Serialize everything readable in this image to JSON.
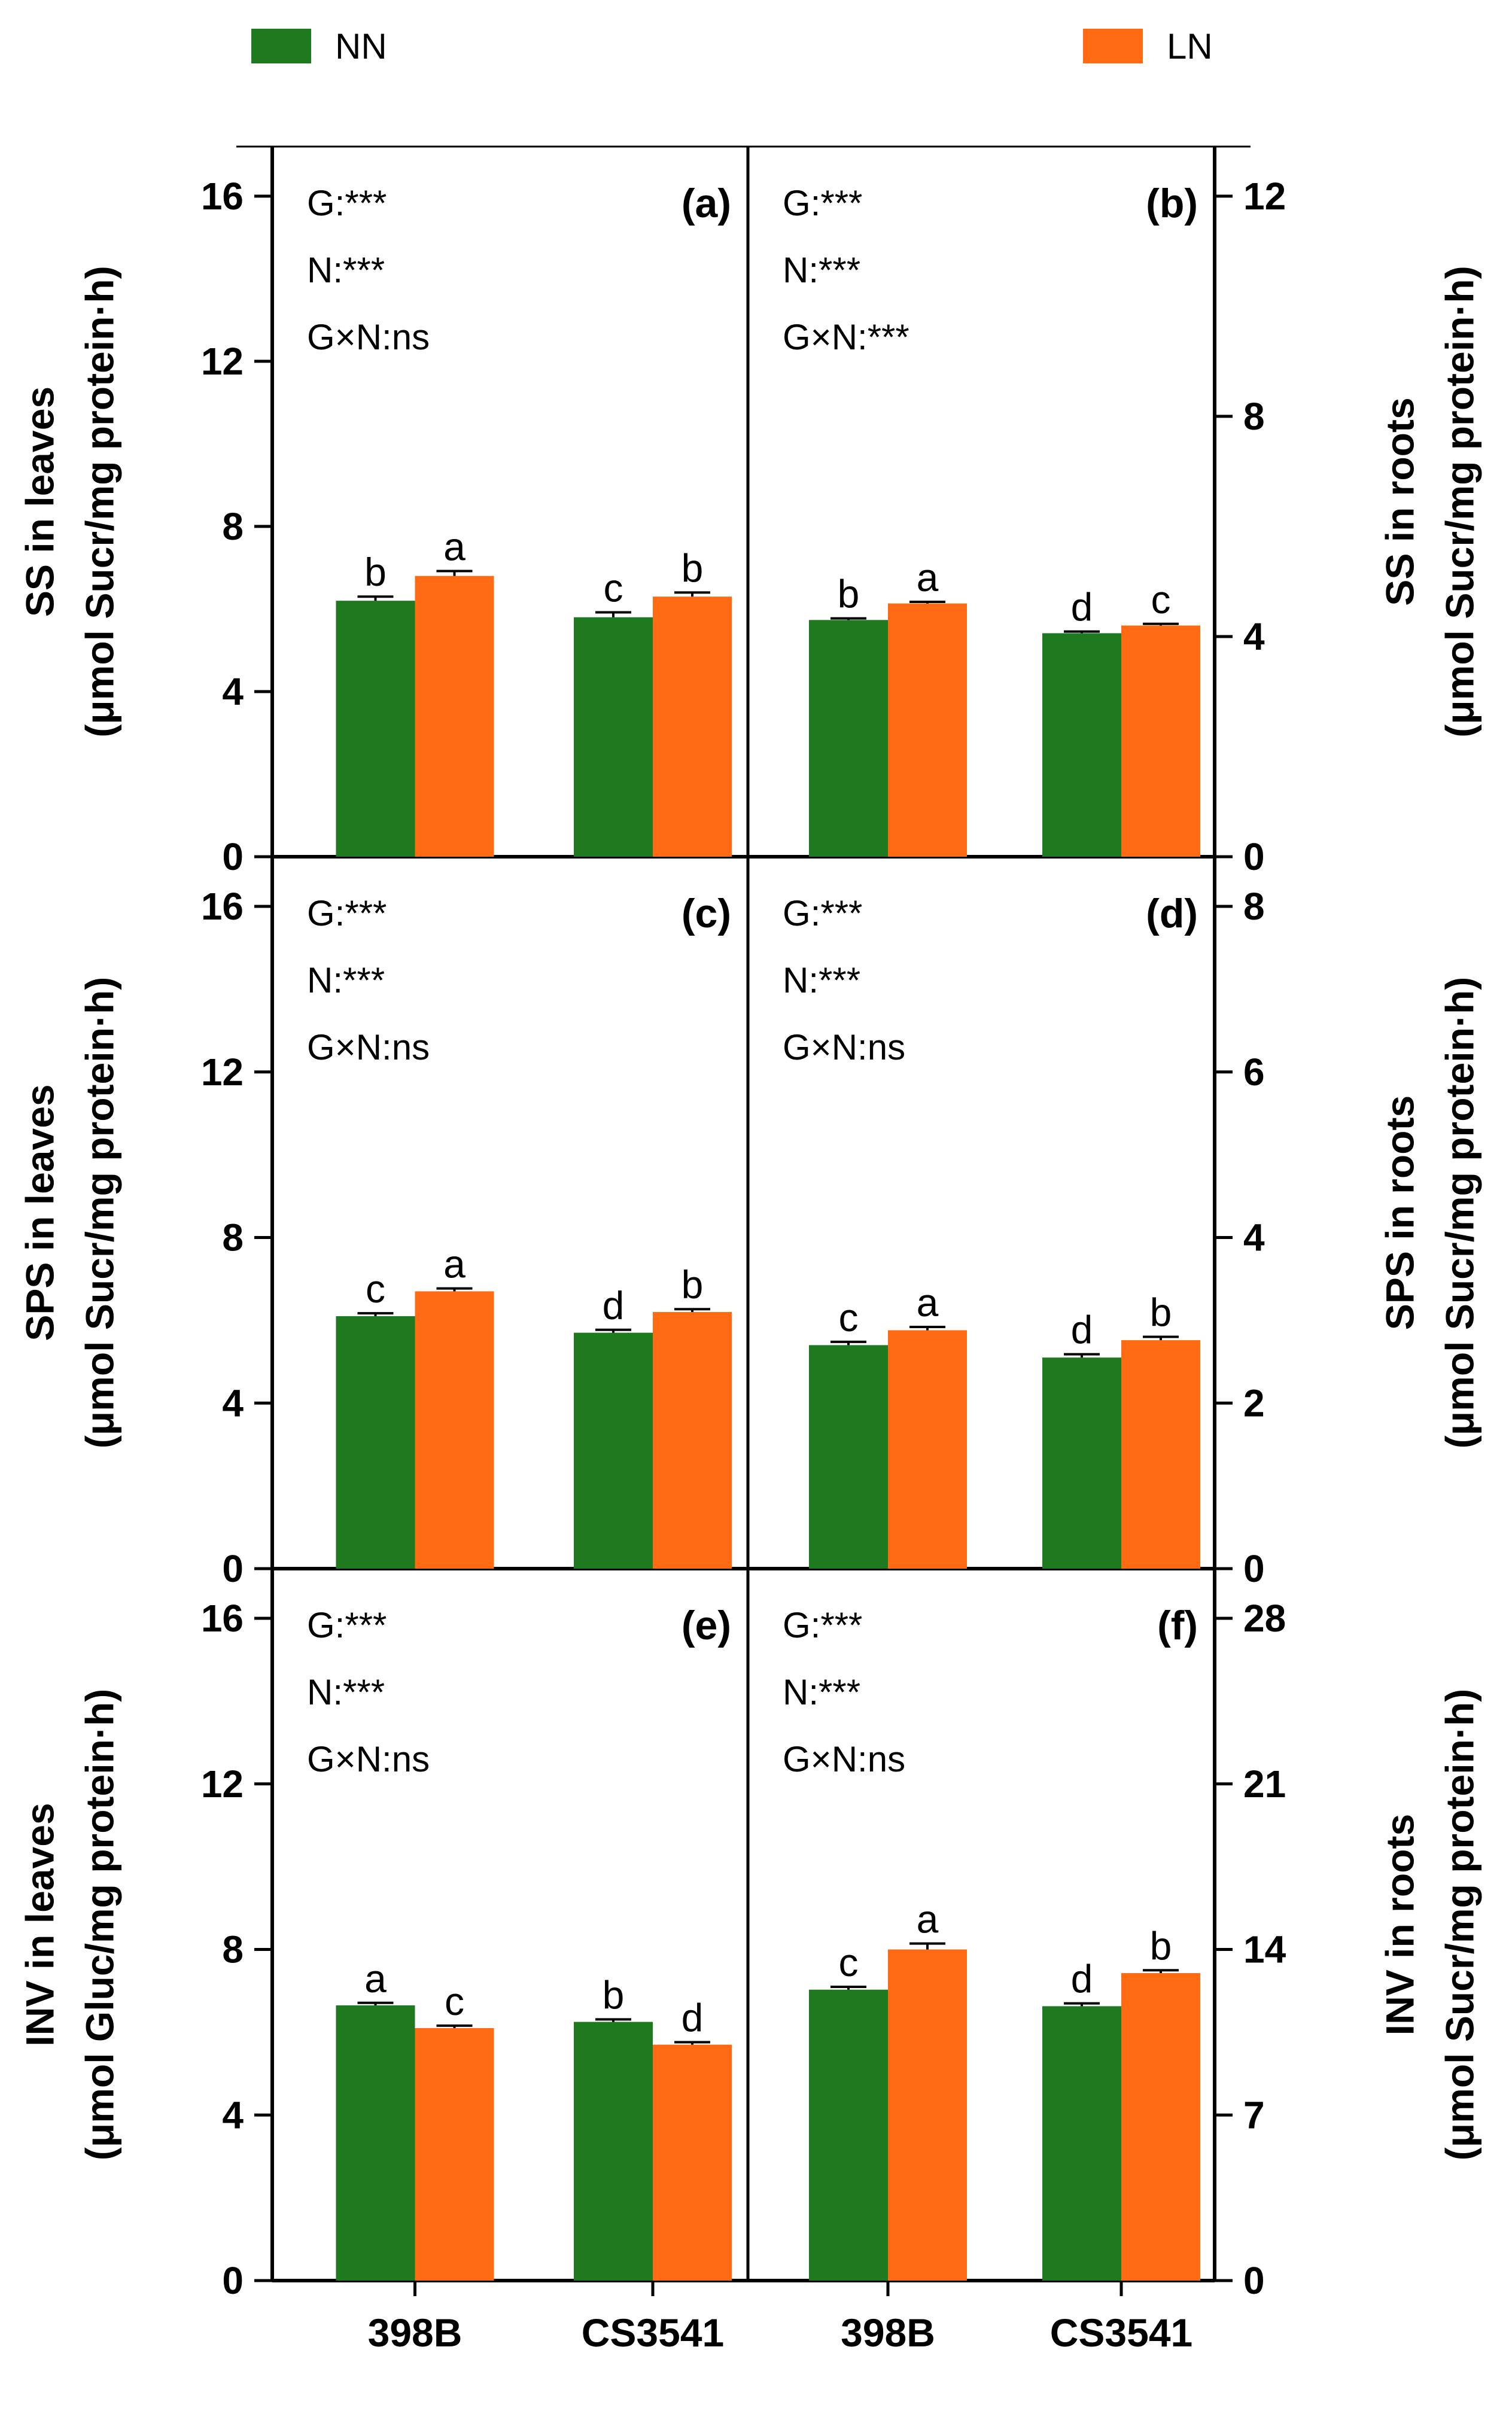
{
  "legend": {
    "items": [
      {
        "label": "NN",
        "color": "#1f7a1f"
      },
      {
        "label": "LN",
        "color": "#ff6a13"
      }
    ]
  },
  "colors": {
    "NN": "#1f7a1f",
    "LN": "#ff6a13",
    "axis": "#000000"
  },
  "chart_data": [
    {
      "type": "bar",
      "panel": "(a)",
      "categories": [
        "398B",
        "CS3541"
      ],
      "series": [
        {
          "name": "NN",
          "values": [
            6.2,
            5.8
          ],
          "errors": [
            0.1,
            0.12
          ],
          "letters": [
            "b",
            "c"
          ]
        },
        {
          "name": "LN",
          "values": [
            6.8,
            6.3
          ],
          "errors": [
            0.12,
            0.1
          ],
          "letters": [
            "a",
            "b"
          ]
        }
      ],
      "ylim": [
        0,
        17.2
      ],
      "yticks": [
        0,
        4,
        8,
        12,
        16
      ],
      "yaxis_side": "left",
      "ylabel_lines": [
        "SS in leaves",
        "(μmol Sucr/mg protein·h)"
      ],
      "stats": [
        "G:***",
        "N:***",
        "G×N:ns"
      ]
    },
    {
      "type": "bar",
      "panel": "(b)",
      "categories": [
        "398B",
        "CS3541"
      ],
      "series": [
        {
          "name": "NN",
          "values": [
            4.3,
            4.06
          ],
          "errors": [
            0.03,
            0.03
          ],
          "letters": [
            "b",
            "d"
          ]
        },
        {
          "name": "LN",
          "values": [
            4.6,
            4.2
          ],
          "errors": [
            0.03,
            0.03
          ],
          "letters": [
            "a",
            "c"
          ]
        }
      ],
      "ylim": [
        0,
        12.9
      ],
      "yticks": [
        0,
        4,
        8,
        12
      ],
      "yaxis_side": "right",
      "ylabel_lines": [
        "SS in roots",
        "(μmol Sucr/mg protein·h)"
      ],
      "stats": [
        "G:***",
        "N:***",
        "G×N:***"
      ]
    },
    {
      "type": "bar",
      "panel": "(c)",
      "categories": [
        "398B",
        "CS3541"
      ],
      "series": [
        {
          "name": "NN",
          "values": [
            6.1,
            5.7
          ],
          "errors": [
            0.07,
            0.07
          ],
          "letters": [
            "c",
            "d"
          ]
        },
        {
          "name": "LN",
          "values": [
            6.7,
            6.2
          ],
          "errors": [
            0.07,
            0.07
          ],
          "letters": [
            "a",
            "b"
          ]
        }
      ],
      "ylim": [
        0,
        17.2
      ],
      "yticks": [
        0,
        4,
        8,
        12,
        16
      ],
      "yaxis_side": "left",
      "ylabel_lines": [
        "SPS in leaves",
        "(μmol Sucr/mg protein·h)"
      ],
      "stats": [
        "G:***",
        "N:***",
        "G×N:ns"
      ]
    },
    {
      "type": "bar",
      "panel": "(d)",
      "categories": [
        "398B",
        "CS3541"
      ],
      "series": [
        {
          "name": "NN",
          "values": [
            2.7,
            2.55
          ],
          "errors": [
            0.04,
            0.04
          ],
          "letters": [
            "c",
            "d"
          ]
        },
        {
          "name": "LN",
          "values": [
            2.88,
            2.76
          ],
          "errors": [
            0.04,
            0.04
          ],
          "letters": [
            "a",
            "b"
          ]
        }
      ],
      "ylim": [
        0,
        8.6
      ],
      "yticks": [
        0,
        2,
        4,
        6,
        8
      ],
      "yaxis_side": "right",
      "ylabel_lines": [
        "SPS in roots",
        "(μmol Sucr/mg protein·h)"
      ],
      "stats": [
        "G:***",
        "N:***",
        "G×N:ns"
      ]
    },
    {
      "type": "bar",
      "panel": "(e)",
      "categories": [
        "398B",
        "CS3541"
      ],
      "series": [
        {
          "name": "NN",
          "values": [
            6.65,
            6.25
          ],
          "errors": [
            0.06,
            0.06
          ],
          "letters": [
            "a",
            "b"
          ]
        },
        {
          "name": "LN",
          "values": [
            6.1,
            5.7
          ],
          "errors": [
            0.06,
            0.06
          ],
          "letters": [
            "c",
            "d"
          ]
        }
      ],
      "ylim": [
        0,
        17.2
      ],
      "yticks": [
        0,
        4,
        8,
        12,
        16
      ],
      "yaxis_side": "left",
      "ylabel_lines": [
        "INV in leaves",
        "(μmol Gluc/mg protein·h)"
      ],
      "stats": [
        "G:***",
        "N:***",
        "G×N:ns"
      ]
    },
    {
      "type": "bar",
      "panel": "(f)",
      "categories": [
        "398B",
        "CS3541"
      ],
      "series": [
        {
          "name": "NN",
          "values": [
            12.3,
            11.6
          ],
          "errors": [
            0.12,
            0.12
          ],
          "letters": [
            "c",
            "d"
          ]
        },
        {
          "name": "LN",
          "values": [
            14.0,
            13.0
          ],
          "errors": [
            0.25,
            0.12
          ],
          "letters": [
            "a",
            "b"
          ]
        }
      ],
      "ylim": [
        0,
        30.1
      ],
      "yticks": [
        0,
        7,
        14,
        21,
        28
      ],
      "yaxis_side": "right",
      "ylabel_lines": [
        "INV in roots",
        "(μmol Sucr/mg protein·h)"
      ],
      "stats": [
        "G:***",
        "N:***",
        "G×N:ns"
      ]
    }
  ]
}
